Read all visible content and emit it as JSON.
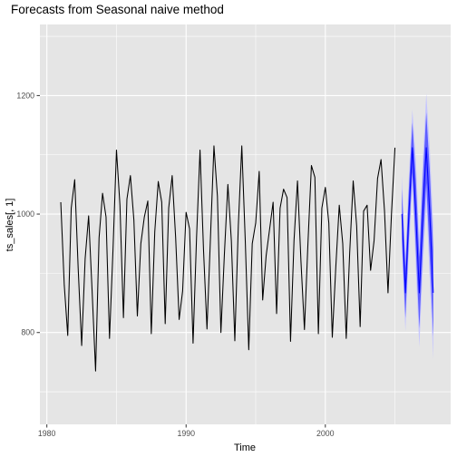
{
  "chart_data": {
    "type": "line",
    "title": "Forecasts from Seasonal naive method",
    "xlabel": "Time",
    "ylabel": "ts_sales[, 1]",
    "xlim": [
      1979.5,
      2009.0
    ],
    "ylim": [
      645,
      1320
    ],
    "x_ticks": [
      1980,
      1990,
      2000
    ],
    "x_tick_labels": [
      "1980",
      "1990",
      "2000"
    ],
    "y_ticks": [
      800,
      1000,
      1200
    ],
    "y_tick_labels": [
      "800",
      "1000",
      "1200"
    ],
    "grid": true,
    "legend": "none",
    "colors": {
      "panel": "#e5e5e5",
      "grid": "#ffffff",
      "series": "#000000",
      "forecast": "#0000ff",
      "pi80": "#5e5eff",
      "pi95": "#c5c5ff"
    },
    "series": [
      {
        "start": 1981.0,
        "frequency": 4,
        "values": [
          1020,
          880,
          795,
          1010,
          1058,
          908,
          778,
          925,
          997,
          870,
          735,
          960,
          1035,
          995,
          790,
          940,
          1108,
          1015,
          825,
          1025,
          1065,
          990,
          828,
          950,
          995,
          1022,
          798,
          970,
          1055,
          1020,
          815,
          1010,
          1065,
          960,
          822,
          870,
          1003,
          975,
          782,
          960,
          1108,
          940,
          806,
          960,
          1115,
          1030,
          800,
          932,
          1050,
          955,
          786,
          980,
          1115,
          955,
          771,
          950,
          985,
          1072,
          855,
          930,
          975,
          1020,
          832,
          1010,
          1042,
          1028,
          785,
          955,
          1056,
          920,
          805,
          950,
          1082,
          1062,
          798,
          1010,
          1045,
          985,
          792,
          910,
          1015,
          950,
          790,
          935,
          1056,
          980,
          810,
          1005,
          1015,
          905,
          955,
          1060,
          1092,
          1005,
          867,
          1000,
          1112
        ]
      },
      {
        "name": "forecast",
        "start": 2005.5,
        "frequency": 4,
        "values": [
          1000,
          867,
          1000,
          1112,
          1000,
          867,
          1000,
          1112,
          1000,
          867
        ]
      }
    ]
  }
}
